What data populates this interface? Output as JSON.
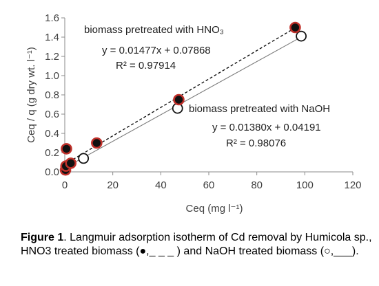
{
  "chart_data": {
    "type": "scatter",
    "xlabel": "Ceq (mg l⁻¹)",
    "ylabel": "Ceq / q (g dry wt. l⁻¹)",
    "xlim": [
      0,
      120
    ],
    "ylim": [
      0.0,
      1.6
    ],
    "x_ticks": [
      "0",
      "20",
      "40",
      "60",
      "80",
      "100",
      "120"
    ],
    "y_ticks": [
      "0.0",
      "0.2",
      "0.4",
      "0.6",
      "0.8",
      "1.0",
      "1.2",
      "1.4",
      "1.6"
    ],
    "grid": false,
    "series": [
      {
        "name": "biomass pretreated with HNO₃",
        "marker": "filled",
        "line": "dashed",
        "color": "#111111",
        "edge_color": "#c0302a",
        "points": [
          [
            0.3,
            0.02
          ],
          [
            0.5,
            0.06
          ],
          [
            0.7,
            0.24
          ],
          [
            2.5,
            0.09
          ],
          [
            13.3,
            0.3
          ],
          [
            47.5,
            0.75
          ],
          [
            96.0,
            1.5
          ]
        ],
        "equation": "y = 0.01477x  + 0.07868",
        "r2": "R² = 0.97914",
        "slope": 0.01477,
        "intercept": 0.07868
      },
      {
        "name": "biomass pretreated with NaOH",
        "marker": "open",
        "line": "solid",
        "color": "#111111",
        "edge_color": "#111111",
        "points": [
          [
            0.5,
            0.05
          ],
          [
            7.8,
            0.14
          ],
          [
            47.0,
            0.66
          ],
          [
            98.5,
            1.41
          ]
        ],
        "equation": "y = 0.01380x  + 0.04191",
        "r2": "R² = 0.98076",
        "slope": 0.0138,
        "intercept": 0.04191
      }
    ]
  },
  "caption": {
    "label": "Figure 1",
    "text": ". Langmuir adsorption isotherm of Cd removal by Humicola sp., HNO3 treated biomass (●,_ _ _ ) and NaOH treated biomass (○,___)."
  }
}
